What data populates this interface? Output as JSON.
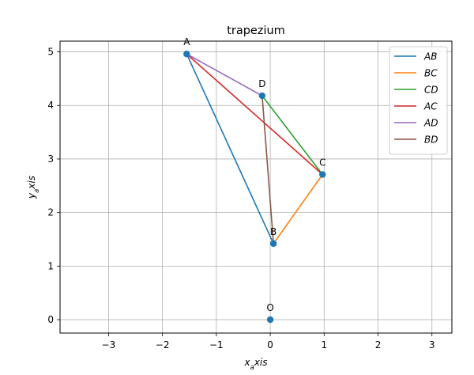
{
  "chart_data": {
    "type": "line",
    "title": "trapezium",
    "xlabel": "x_axis",
    "ylabel": "y_axis",
    "xlim": [
      -3.9,
      3.37
    ],
    "ylim": [
      -0.25,
      5.2
    ],
    "xticks": [
      -3,
      -2,
      -1,
      0,
      1,
      2,
      3
    ],
    "yticks": [
      0,
      1,
      2,
      3,
      4,
      5
    ],
    "xtick_labels": [
      "−3",
      "−2",
      "−1",
      "0",
      "1",
      "2",
      "3"
    ],
    "ytick_labels": [
      "0",
      "1",
      "2",
      "3",
      "4",
      "5"
    ],
    "grid": true,
    "legend_position": "top-right",
    "points": [
      {
        "label": "A",
        "x": -1.55,
        "y": 4.96
      },
      {
        "label": "B",
        "x": 0.06,
        "y": 1.42
      },
      {
        "label": "C",
        "x": 0.97,
        "y": 2.71
      },
      {
        "label": "D",
        "x": -0.15,
        "y": 4.18
      },
      {
        "label": "O",
        "x": 0.0,
        "y": 0.0
      }
    ],
    "series": [
      {
        "name": "AB",
        "from": "A",
        "to": "B",
        "color": "#1f77b4"
      },
      {
        "name": "BC",
        "from": "B",
        "to": "C",
        "color": "#ff7f0e"
      },
      {
        "name": "CD",
        "from": "C",
        "to": "D",
        "color": "#2ca02c"
      },
      {
        "name": "AC",
        "from": "A",
        "to": "C",
        "color": "#d62728"
      },
      {
        "name": "AD",
        "from": "A",
        "to": "D",
        "color": "#9467bd"
      },
      {
        "name": "BD",
        "from": "B",
        "to": "D",
        "color": "#8c564b"
      }
    ],
    "marker_color": "#1f77b4"
  }
}
